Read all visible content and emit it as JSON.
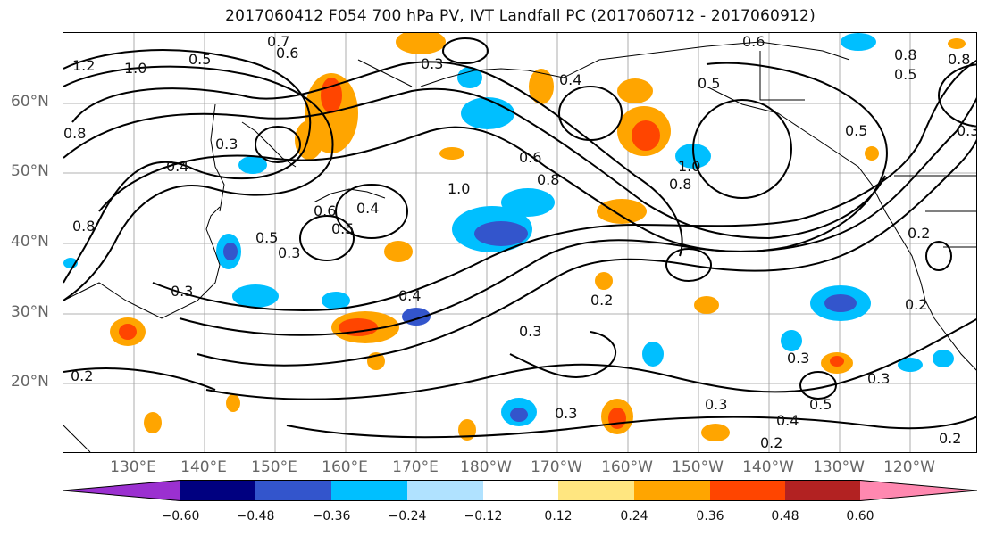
{
  "title": "2017060412 F054 700 hPa PV, IVT Landfall PC (2017060712 - 2017060912)",
  "axes": {
    "lat_labels": [
      "60°N",
      "50°N",
      "40°N",
      "30°N",
      "20°N"
    ],
    "lon_labels": [
      "130°E",
      "140°E",
      "150°E",
      "160°E",
      "170°E",
      "180°W",
      "170°W",
      "160°W",
      "150°W",
      "140°W",
      "130°W",
      "120°W"
    ]
  },
  "colorbar": {
    "tick_labels": [
      "−0.60",
      "−0.48",
      "−0.36",
      "−0.24",
      "−0.12",
      "0.12",
      "0.24",
      "0.36",
      "0.48",
      "0.60"
    ],
    "colors": [
      "#9b30d0",
      "#000080",
      "#3355cc",
      "#00bfff",
      "#b0e2ff",
      "#ffffff",
      "#ffe680",
      "#ffa500",
      "#ff4500",
      "#b22222",
      "#ff88b0"
    ]
  },
  "contour_labels": [
    "1.2",
    "1.0",
    "0.5",
    "0.7",
    "0.6",
    "0.3",
    "0.4",
    "0.5",
    "0.6",
    "0.8",
    "0.5",
    "0.3",
    "0.4",
    "0.3",
    "0.8",
    "0.6",
    "0.4",
    "0.5",
    "0.3",
    "0.6",
    "0.8",
    "1.0",
    "1.0",
    "0.8",
    "0.5",
    "0.2",
    "0.4",
    "0.3",
    "0.2",
    "0.3",
    "0.3",
    "0.3",
    "0.5",
    "0.4",
    "0.2",
    "0.2",
    "0.3",
    "0.2",
    "0.2",
    "0.8",
    "0.8",
    "0.5",
    "0.3"
  ]
}
